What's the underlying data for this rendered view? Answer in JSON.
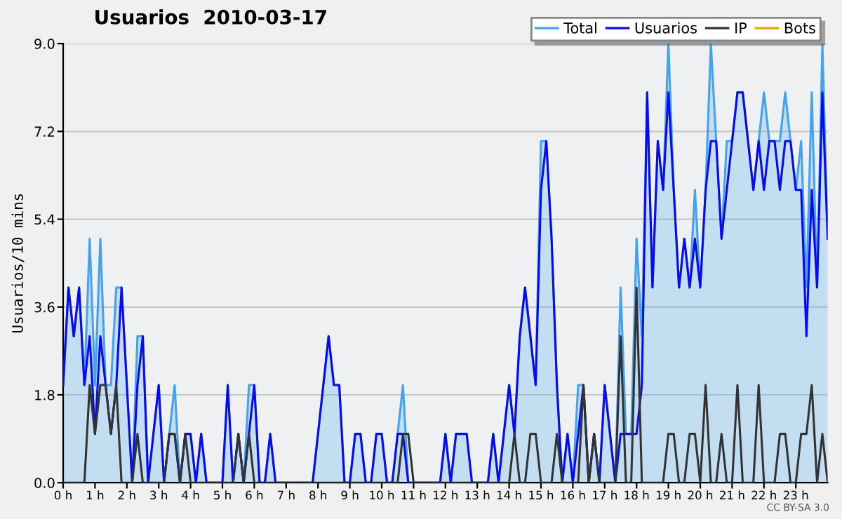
{
  "chart_data": {
    "type": "line",
    "title": "Usuarios  2010-03-17",
    "ylabel": "Usuarios/10 mins",
    "x": [
      0,
      0.167,
      0.333,
      0.5,
      0.667,
      0.833,
      1,
      1.167,
      1.333,
      1.5,
      1.667,
      1.833,
      2,
      2.167,
      2.333,
      2.5,
      2.667,
      2.833,
      3,
      3.167,
      3.333,
      3.5,
      3.667,
      3.833,
      4,
      4.167,
      4.333,
      4.5,
      4.667,
      4.833,
      5,
      5.167,
      5.333,
      5.5,
      5.667,
      5.833,
      6,
      6.167,
      6.333,
      6.5,
      6.667,
      6.833,
      7,
      7.167,
      7.333,
      7.5,
      7.667,
      7.833,
      8,
      8.167,
      8.333,
      8.5,
      8.667,
      8.833,
      9,
      9.167,
      9.333,
      9.5,
      9.667,
      9.833,
      10,
      10.167,
      10.333,
      10.5,
      10.667,
      10.833,
      11,
      11.167,
      11.333,
      11.5,
      11.667,
      11.833,
      12,
      12.167,
      12.333,
      12.5,
      12.667,
      12.833,
      13,
      13.167,
      13.333,
      13.5,
      13.667,
      13.833,
      14,
      14.167,
      14.333,
      14.5,
      14.667,
      14.833,
      15,
      15.167,
      15.333,
      15.5,
      15.667,
      15.833,
      16,
      16.167,
      16.333,
      16.5,
      16.667,
      16.833,
      17,
      17.167,
      17.333,
      17.5,
      17.667,
      17.833,
      18,
      18.167,
      18.333,
      18.5,
      18.667,
      18.833,
      19,
      19.167,
      19.333,
      19.5,
      19.667,
      19.833,
      20,
      20.167,
      20.333,
      20.5,
      20.667,
      20.833,
      21,
      21.167,
      21.333,
      21.5,
      21.667,
      21.833,
      22,
      22.167,
      22.333,
      22.5,
      22.667,
      22.833,
      23,
      23.167,
      23.333,
      23.5,
      23.667,
      23.833,
      24
    ],
    "series": [
      {
        "name": "Total",
        "type": "area",
        "color": "#45a2ef",
        "values": [
          2,
          4,
          3,
          4,
          2,
          5,
          2,
          5,
          2,
          2,
          4,
          4,
          2,
          0,
          3,
          3,
          0,
          1,
          2,
          0,
          1,
          2,
          0,
          1,
          1,
          0,
          1,
          0,
          0,
          0,
          0,
          2,
          0,
          1,
          0,
          2,
          2,
          0,
          0,
          1,
          0,
          0,
          0,
          0,
          0,
          0,
          0,
          0,
          1,
          2,
          3,
          2,
          2,
          0,
          0,
          1,
          1,
          0,
          0,
          1,
          1,
          0,
          0,
          1,
          2,
          0,
          0,
          0,
          0,
          0,
          0,
          0,
          1,
          0,
          1,
          1,
          1,
          0,
          0,
          0,
          0,
          1,
          0,
          1,
          2,
          1,
          3,
          4,
          3,
          2,
          7,
          7,
          5,
          2,
          0,
          1,
          0,
          2,
          2,
          0,
          1,
          0,
          2,
          1,
          0,
          4,
          1,
          1,
          5,
          3,
          8,
          4,
          7,
          6,
          9,
          6,
          4,
          5,
          4,
          6,
          4,
          6,
          9,
          7,
          5,
          7,
          7,
          8,
          8,
          7,
          6,
          7,
          8,
          7,
          7,
          7,
          8,
          7,
          6,
          7,
          4,
          8,
          4,
          9,
          5
        ]
      },
      {
        "name": "Usuarios",
        "color": "#0a0aee",
        "values": [
          2,
          4,
          3,
          4,
          2,
          3,
          1,
          3,
          2,
          1,
          2,
          4,
          2,
          0,
          2,
          3,
          0,
          1,
          2,
          0,
          1,
          1,
          0,
          1,
          1,
          0,
          1,
          0,
          0,
          0,
          0,
          2,
          0,
          1,
          0,
          1,
          2,
          0,
          0,
          1,
          0,
          0,
          0,
          0,
          0,
          0,
          0,
          0,
          1,
          2,
          3,
          2,
          2,
          0,
          0,
          1,
          1,
          0,
          0,
          1,
          1,
          0,
          0,
          1,
          1,
          0,
          0,
          0,
          0,
          0,
          0,
          0,
          1,
          0,
          1,
          1,
          1,
          0,
          0,
          0,
          0,
          1,
          0,
          1,
          2,
          1,
          3,
          4,
          3,
          2,
          6,
          7,
          5,
          2,
          0,
          1,
          0,
          1,
          2,
          0,
          1,
          0,
          2,
          1,
          0,
          1,
          1,
          1,
          1,
          2,
          8,
          4,
          7,
          6,
          8,
          6,
          4,
          5,
          4,
          5,
          4,
          6,
          7,
          7,
          5,
          6,
          7,
          8,
          8,
          7,
          6,
          7,
          6,
          7,
          7,
          6,
          7,
          7,
          6,
          6,
          3,
          6,
          4,
          8,
          5
        ]
      },
      {
        "name": "IP",
        "color": "#333333",
        "values": [
          0,
          0,
          0,
          0,
          0,
          2,
          1,
          2,
          2,
          1,
          2,
          0,
          0,
          0,
          1,
          0,
          0,
          0,
          0,
          0,
          1,
          1,
          0,
          1,
          0,
          0,
          0,
          0,
          0,
          0,
          0,
          0,
          0,
          1,
          0,
          1,
          0,
          0,
          0,
          0,
          0,
          0,
          0,
          0,
          0,
          0,
          0,
          0,
          0,
          0,
          0,
          0,
          0,
          0,
          0,
          0,
          0,
          0,
          0,
          0,
          0,
          0,
          0,
          0,
          1,
          1,
          0,
          0,
          0,
          0,
          0,
          0,
          0,
          0,
          0,
          0,
          0,
          0,
          0,
          0,
          0,
          0,
          0,
          0,
          0,
          1,
          0,
          0,
          1,
          1,
          0,
          0,
          0,
          1,
          0,
          0,
          0,
          0,
          2,
          0,
          1,
          0,
          0,
          0,
          0,
          3,
          0,
          0,
          4,
          0,
          0,
          0,
          0,
          0,
          1,
          1,
          0,
          0,
          1,
          1,
          0,
          2,
          0,
          0,
          1,
          0,
          0,
          2,
          0,
          0,
          0,
          2,
          0,
          0,
          0,
          1,
          1,
          0,
          0,
          1,
          1,
          2,
          0,
          1,
          0
        ]
      },
      {
        "name": "Bots",
        "color": "#ff9900",
        "values": [
          null,
          null,
          null,
          null,
          null,
          null,
          null,
          null,
          null,
          null,
          null,
          null,
          null,
          null,
          null,
          null,
          null,
          null,
          null,
          null,
          null,
          null,
          null,
          null,
          null,
          null,
          null,
          null,
          null,
          null,
          null,
          null,
          null,
          null,
          null,
          null,
          null,
          null,
          null,
          null,
          null,
          null,
          null,
          null,
          null,
          null,
          null,
          null,
          null,
          null,
          null,
          null,
          null,
          null,
          null,
          null,
          null,
          null,
          null,
          null,
          null,
          null,
          null,
          null,
          null,
          null,
          null,
          null,
          null,
          null,
          null,
          null,
          null,
          null,
          null,
          null,
          null,
          null,
          null,
          null,
          null,
          null,
          null,
          null,
          null,
          null,
          null,
          null,
          null,
          null,
          null,
          null,
          null,
          null,
          null,
          null,
          null,
          null,
          null,
          null,
          null,
          null,
          null,
          null,
          null,
          null,
          null,
          null,
          null,
          null,
          null,
          null,
          null,
          null,
          null,
          null,
          null,
          null,
          null,
          null,
          null,
          null,
          null,
          null,
          null,
          null,
          null,
          null,
          null,
          null,
          null,
          null,
          null,
          null,
          null,
          null,
          null,
          null,
          null,
          null,
          null,
          null,
          null,
          null,
          null
        ]
      }
    ],
    "xlim": [
      0,
      24
    ],
    "ylim": [
      0,
      9
    ],
    "xticks": [
      {
        "value": 0,
        "label": "0 h"
      },
      {
        "value": 1,
        "label": "1 h"
      },
      {
        "value": 2,
        "label": "2 h"
      },
      {
        "value": 3,
        "label": "3 h"
      },
      {
        "value": 4,
        "label": "4 h"
      },
      {
        "value": 5,
        "label": "5 h"
      },
      {
        "value": 6,
        "label": "6 h"
      },
      {
        "value": 7,
        "label": "7 h"
      },
      {
        "value": 8,
        "label": "8 h"
      },
      {
        "value": 9,
        "label": "9 h"
      },
      {
        "value": 10,
        "label": "10 h"
      },
      {
        "value": 11,
        "label": "11 h"
      },
      {
        "value": 12,
        "label": "12 h"
      },
      {
        "value": 13,
        "label": "13 h"
      },
      {
        "value": 14,
        "label": "14 h"
      },
      {
        "value": 15,
        "label": "15 h"
      },
      {
        "value": 16,
        "label": "16 h"
      },
      {
        "value": 17,
        "label": "17 h"
      },
      {
        "value": 18,
        "label": "18 h"
      },
      {
        "value": 19,
        "label": "19 h"
      },
      {
        "value": 20,
        "label": "20 h"
      },
      {
        "value": 21,
        "label": "21 h"
      },
      {
        "value": 22,
        "label": "22 h"
      },
      {
        "value": 23,
        "label": "23 h"
      }
    ],
    "yticks": [
      {
        "value": 0,
        "label": "0.0"
      },
      1.8,
      3.6,
      5.4,
      7.2,
      {
        "value": 9,
        "label": "9.0"
      }
    ],
    "grid": "y",
    "legend": "top right",
    "marker": "none",
    "annotations": [
      "CC BY-SA 3.0"
    ]
  }
}
